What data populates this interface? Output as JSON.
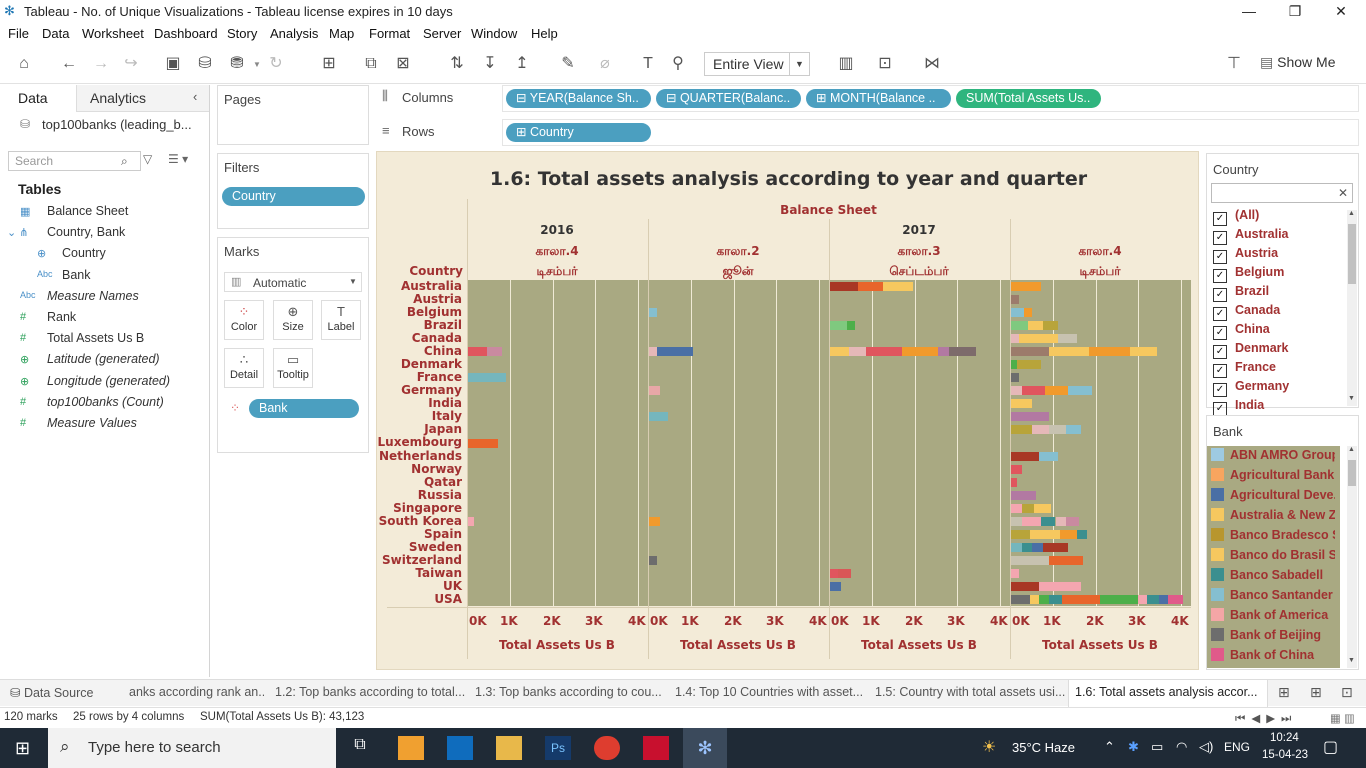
{
  "window": {
    "title": "Tableau - No. of Unique Visualizations - Tableau license expires in 10 days",
    "controls": [
      "—",
      "❐",
      "✕"
    ]
  },
  "menu": [
    "File",
    "Data",
    "Worksheet",
    "Dashboard",
    "Story",
    "Analysis",
    "Map",
    "Format",
    "Server",
    "Window",
    "Help"
  ],
  "toolbar": {
    "fit": "Entire View",
    "show_me": "Show Me"
  },
  "data_pane": {
    "tabs": [
      "Data",
      "Analytics"
    ],
    "data_source": "top100banks (leading_b...",
    "search_placeholder": "Search",
    "tables_heading": "Tables",
    "fields": [
      {
        "name": "Balance Sheet",
        "type": "table"
      },
      {
        "name": "Country, Bank",
        "type": "hierarchy"
      },
      {
        "name": "Country",
        "type": "geo"
      },
      {
        "name": "Bank",
        "type": "abc"
      },
      {
        "name": "Measure Names",
        "type": "abc",
        "italic": true
      },
      {
        "name": "Rank",
        "type": "measure"
      },
      {
        "name": "Total Assets Us B",
        "type": "measure"
      },
      {
        "name": "Latitude (generated)",
        "type": "geo-measure",
        "italic": true
      },
      {
        "name": "Longitude (generated)",
        "type": "geo-measure",
        "italic": true
      },
      {
        "name": "top100banks (Count)",
        "type": "measure",
        "italic": true
      },
      {
        "name": "Measure Values",
        "type": "measure",
        "italic": true
      }
    ]
  },
  "cards": {
    "pages": "Pages",
    "filters": "Filters",
    "filter_pill": "Country",
    "marks": "Marks",
    "mark_type": "Automatic",
    "mark_buttons": [
      "Color",
      "Size",
      "Label",
      "Detail",
      "Tooltip"
    ],
    "marks_pill": "Bank"
  },
  "shelves": {
    "columns_label": "Columns",
    "rows_label": "Rows",
    "columns": [
      "YEAR(Balance Sh..",
      "QUARTER(Balanc..",
      "MONTH(Balance ..",
      "SUM(Total Assets Us.."
    ],
    "rows": [
      "Country"
    ]
  },
  "viz": {
    "title": "1.6: Total assets analysis according to year and quarter",
    "top_header": "Balance Sheet",
    "row_header": "Country",
    "axis_title": "Total Assets Us B",
    "ticks": [
      "0K",
      "1K",
      "2K",
      "3K",
      "4K"
    ]
  },
  "chart_data": {
    "type": "bar",
    "title": "1.6: Total assets analysis according to year and quarter",
    "xlabel": "Total Assets Us B",
    "xlim": [
      0,
      4200
    ],
    "stacked": true,
    "columns": [
      {
        "year": "2016",
        "quarter": "காலா.4",
        "month": "டிசம்பர்"
      },
      {
        "year": "",
        "quarter": "காலா.2",
        "month": "ஜூன்"
      },
      {
        "year": "2017",
        "quarter": "காலா.3",
        "month": "செப்டம்பர்"
      },
      {
        "year": "",
        "quarter": "காலா.4",
        "month": "டிசம்பர்"
      }
    ],
    "categories": [
      "Australia",
      "Austria",
      "Belgium",
      "Brazil",
      "Canada",
      "China",
      "Denmark",
      "France",
      "Germany",
      "India",
      "Italy",
      "Japan",
      "Luxembourg",
      "Netherlands",
      "Norway",
      "Qatar",
      "Russia",
      "Singapore",
      "South Korea",
      "Spain",
      "Sweden",
      "Switzerland",
      "Taiwan",
      "UK",
      "USA"
    ],
    "bars": [
      [
        {
          "row": 5,
          "segments": [
            {
              "v": 450,
              "c": "#e0555e"
            },
            {
              "v": 350,
              "c": "#c98aa0"
            }
          ]
        },
        {
          "row": 7,
          "segments": [
            {
              "v": 900,
              "c": "#75b6bd"
            }
          ]
        },
        {
          "row": 12,
          "segments": [
            {
              "v": 700,
              "c": "#e8652b"
            }
          ]
        },
        {
          "row": 18,
          "segments": [
            {
              "v": 150,
              "c": "#f4a6b0"
            }
          ]
        }
      ],
      [
        {
          "row": 2,
          "segments": [
            {
              "v": 200,
              "c": "#85bfd0"
            }
          ]
        },
        {
          "row": 5,
          "segments": [
            {
              "v": 200,
              "c": "#e5b8b8"
            },
            {
              "v": 850,
              "c": "#4a6fa5"
            }
          ]
        },
        {
          "row": 8,
          "segments": [
            {
              "v": 250,
              "c": "#e8a7a7"
            }
          ]
        },
        {
          "row": 10,
          "segments": [
            {
              "v": 450,
              "c": "#75b6bd"
            }
          ]
        },
        {
          "row": 18,
          "segments": [
            {
              "v": 250,
              "c": "#f19a2c"
            }
          ]
        },
        {
          "row": 21,
          "segments": [
            {
              "v": 200,
              "c": "#6d6d6d"
            }
          ]
        }
      ],
      [
        {
          "row": 0,
          "segments": [
            {
              "v": 650,
              "c": "#a83825"
            },
            {
              "v": 600,
              "c": "#e8652b"
            },
            {
              "v": 700,
              "c": "#f6c85f"
            }
          ]
        },
        {
          "row": 3,
          "segments": [
            {
              "v": 400,
              "c": "#7fc97f"
            },
            {
              "v": 200,
              "c": "#4daf4a"
            }
          ]
        },
        {
          "row": 5,
          "segments": [
            {
              "v": 450,
              "c": "#f6c85f"
            },
            {
              "v": 400,
              "c": "#e5b8b8"
            },
            {
              "v": 850,
              "c": "#e0555e"
            },
            {
              "v": 850,
              "c": "#f19a2c"
            },
            {
              "v": 250,
              "c": "#b279a2"
            },
            {
              "v": 650,
              "c": "#7d6b6b"
            }
          ]
        },
        {
          "row": 22,
          "segments": [
            {
              "v": 200,
              "c": "#e0555e"
            },
            {
              "v": 300,
              "c": "#d95757"
            }
          ]
        },
        {
          "row": 23,
          "segments": [
            {
              "v": 250,
              "c": "#4a6fa5"
            }
          ]
        }
      ],
      [
        {
          "row": 0,
          "segments": [
            {
              "v": 700,
              "c": "#f19a2c"
            }
          ]
        },
        {
          "row": 1,
          "segments": [
            {
              "v": 200,
              "c": "#9c7b6b"
            }
          ]
        },
        {
          "row": 2,
          "segments": [
            {
              "v": 300,
              "c": "#85bfd0"
            },
            {
              "v": 200,
              "c": "#f19a2c"
            }
          ]
        },
        {
          "row": 3,
          "segments": [
            {
              "v": 400,
              "c": "#7fc97f"
            },
            {
              "v": 350,
              "c": "#f6c85f"
            },
            {
              "v": 350,
              "c": "#b8a43a"
            }
          ]
        },
        {
          "row": 4,
          "segments": [
            {
              "v": 200,
              "c": "#e5b8b8"
            },
            {
              "v": 900,
              "c": "#f6c85f"
            },
            {
              "v": 450,
              "c": "#c7c2b0"
            }
          ]
        },
        {
          "row": 5,
          "segments": [
            {
              "v": 900,
              "c": "#9c7b6b"
            },
            {
              "v": 950,
              "c": "#f6c85f"
            },
            {
              "v": 950,
              "c": "#f19a2c"
            },
            {
              "v": 650,
              "c": "#f6c85f"
            }
          ]
        },
        {
          "row": 6,
          "segments": [
            {
              "v": 150,
              "c": "#4daf4a"
            },
            {
              "v": 550,
              "c": "#b8a43a"
            }
          ]
        },
        {
          "row": 7,
          "segments": [
            {
              "v": 200,
              "c": "#6d6d6d"
            }
          ]
        },
        {
          "row": 8,
          "segments": [
            {
              "v": 250,
              "c": "#e5b8b8"
            },
            {
              "v": 550,
              "c": "#e0555e"
            },
            {
              "v": 550,
              "c": "#f19a2c"
            },
            {
              "v": 550,
              "c": "#85bfd0"
            }
          ]
        },
        {
          "row": 9,
          "segments": [
            {
              "v": 500,
              "c": "#f6c85f"
            }
          ]
        },
        {
          "row": 10,
          "segments": [
            {
              "v": 900,
              "c": "#b279a2"
            }
          ]
        },
        {
          "row": 11,
          "segments": [
            {
              "v": 500,
              "c": "#b8a43a"
            },
            {
              "v": 400,
              "c": "#e5b8b8"
            },
            {
              "v": 400,
              "c": "#c7c2b0"
            },
            {
              "v": 350,
              "c": "#85bfd0"
            }
          ]
        },
        {
          "row": 13,
          "segments": [
            {
              "v": 650,
              "c": "#a83825"
            },
            {
              "v": 450,
              "c": "#85bfd0"
            }
          ]
        },
        {
          "row": 14,
          "segments": [
            {
              "v": 250,
              "c": "#e0555e"
            }
          ]
        },
        {
          "row": 15,
          "segments": [
            {
              "v": 150,
              "c": "#e0555e"
            }
          ]
        },
        {
          "row": 16,
          "segments": [
            {
              "v": 600,
              "c": "#b279a2"
            }
          ]
        },
        {
          "row": 17,
          "segments": [
            {
              "v": 250,
              "c": "#f4a6b0"
            },
            {
              "v": 300,
              "c": "#b8a43a"
            },
            {
              "v": 400,
              "c": "#f6c85f"
            }
          ]
        },
        {
          "row": 18,
          "segments": [
            {
              "v": 250,
              "c": "#c7c2b0"
            },
            {
              "v": 450,
              "c": "#f4a6b0"
            },
            {
              "v": 350,
              "c": "#3b8f8f"
            },
            {
              "v": 250,
              "c": "#e5b8b8"
            },
            {
              "v": 300,
              "c": "#c98aa0"
            }
          ]
        },
        {
          "row": 19,
          "segments": [
            {
              "v": 450,
              "c": "#b8a43a"
            },
            {
              "v": 700,
              "c": "#f6c85f"
            },
            {
              "v": 400,
              "c": "#f19a2c"
            },
            {
              "v": 250,
              "c": "#3b8f8f"
            }
          ]
        },
        {
          "row": 20,
          "segments": [
            {
              "v": 250,
              "c": "#75b6bd"
            },
            {
              "v": 250,
              "c": "#3b8f8f"
            },
            {
              "v": 250,
              "c": "#4a6fa5"
            },
            {
              "v": 600,
              "c": "#a83825"
            }
          ]
        },
        {
          "row": 21,
          "segments": [
            {
              "v": 900,
              "c": "#c7c2b0"
            },
            {
              "v": 800,
              "c": "#e8652b"
            }
          ]
        },
        {
          "row": 22,
          "segments": [
            {
              "v": 200,
              "c": "#f4a6b0"
            }
          ]
        },
        {
          "row": 23,
          "segments": [
            {
              "v": 650,
              "c": "#a83825"
            },
            {
              "v": 1000,
              "c": "#f4a6b0"
            }
          ]
        },
        {
          "row": 24,
          "segments": [
            {
              "v": 450,
              "c": "#6d6d6d"
            },
            {
              "v": 200,
              "c": "#f6c85f"
            },
            {
              "v": 250,
              "c": "#4daf4a"
            },
            {
              "v": 300,
              "c": "#3b8f8f"
            },
            {
              "v": 900,
              "c": "#e8652b"
            },
            {
              "v": 900,
              "c": "#4daf4a"
            },
            {
              "v": 200,
              "c": "#f4a6b0"
            },
            {
              "v": 300,
              "c": "#3b8f8f"
            },
            {
              "v": 200,
              "c": "#4a6fa5"
            },
            {
              "v": 350,
              "c": "#e05a8a"
            }
          ]
        }
      ]
    ]
  },
  "country_filter": {
    "title": "Country",
    "items": [
      "(All)",
      "Australia",
      "Austria",
      "Belgium",
      "Brazil",
      "Canada",
      "China",
      "Denmark",
      "France",
      "Germany",
      "India"
    ]
  },
  "bank_legend": {
    "title": "Bank",
    "items": [
      {
        "name": "ABN AMRO Group..",
        "color": "#9ecae1"
      },
      {
        "name": "Agricultural Bank ..",
        "color": "#f8a55f"
      },
      {
        "name": "Agricultural Deve..",
        "color": "#4a6fa5"
      },
      {
        "name": "Australia & New Z..",
        "color": "#f6c85f"
      },
      {
        "name": "Banco Bradesco SA",
        "color": "#b8962e"
      },
      {
        "name": "Banco do Brasil SA",
        "color": "#f6c85f"
      },
      {
        "name": "Banco Sabadell",
        "color": "#3b8f8f"
      },
      {
        "name": "Banco Santander",
        "color": "#85bfd0"
      },
      {
        "name": "Bank of America",
        "color": "#f4a6a6"
      },
      {
        "name": "Bank of Beijing",
        "color": "#6d6d6d"
      },
      {
        "name": "Bank of China",
        "color": "#e05a8a"
      }
    ]
  },
  "sheet_tabs": [
    "Data Source",
    "anks according rank an...",
    "1.2: Top banks according to total...",
    "1.3: Top banks according to cou...",
    "1.4: Top 10 Countries with asset...",
    "1.5: Country with total assets usi...",
    "1.6: Total assets analysis accor..."
  ],
  "status": {
    "marks": "120 marks",
    "rows_cols": "25 rows by 4 columns",
    "sum": "SUM(Total Assets Us B): 43,123"
  },
  "taskbar": {
    "search_placeholder": "Type here to search",
    "weather": "35°C  Haze",
    "lang": "ENG",
    "time": "10:24",
    "date": "15-04-23"
  }
}
